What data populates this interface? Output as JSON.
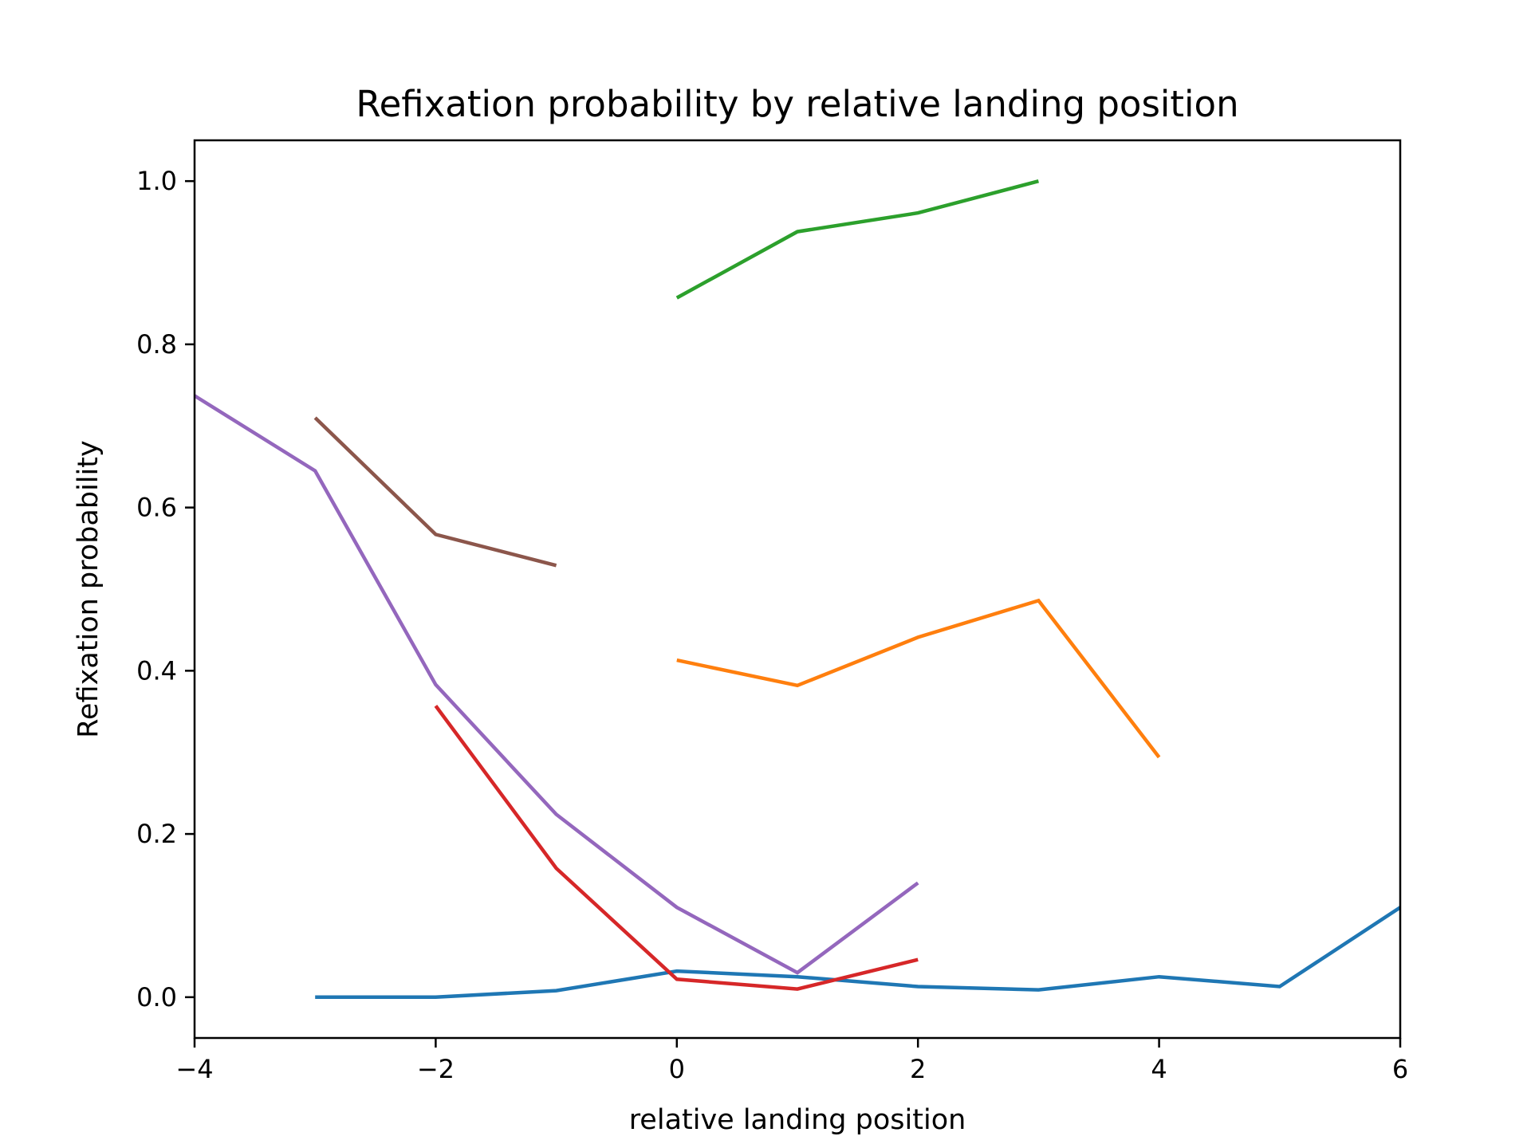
{
  "chart_data": {
    "type": "line",
    "title": "Refixation probability by relative landing position",
    "xlabel": "relative landing position",
    "ylabel": "Refixation probability",
    "xlim": [
      -4,
      6
    ],
    "ylim": [
      -0.05,
      1.05
    ],
    "xticks": [
      -4,
      -2,
      0,
      2,
      4,
      6
    ],
    "xtick_labels": [
      "−4",
      "−2",
      "0",
      "2",
      "4",
      "6"
    ],
    "yticks": [
      0.0,
      0.2,
      0.4,
      0.6,
      0.8,
      1.0
    ],
    "ytick_labels": [
      "0.0",
      "0.2",
      "0.4",
      "0.6",
      "0.8",
      "1.0"
    ],
    "grid": false,
    "series": [
      {
        "color": "#1f77b4",
        "x": [
          -3,
          -2,
          -1,
          0,
          1,
          2,
          3,
          4,
          5,
          6
        ],
        "y": [
          0.0,
          0.0,
          0.008,
          0.032,
          0.025,
          0.013,
          0.009,
          0.025,
          0.013,
          0.11
        ]
      },
      {
        "color": "#ff7f0e",
        "x": [
          0,
          1,
          2,
          3,
          4
        ],
        "y": [
          0.413,
          0.382,
          0.441,
          0.486,
          0.294
        ]
      },
      {
        "color": "#2ca02c",
        "x": [
          0,
          1,
          2,
          3
        ],
        "y": [
          0.857,
          0.938,
          0.961,
          1.0
        ]
      },
      {
        "color": "#d62728",
        "x": [
          -2,
          -1,
          0,
          1,
          2
        ],
        "y": [
          0.357,
          0.158,
          0.022,
          0.01,
          0.046
        ]
      },
      {
        "color": "#9467bd",
        "x": [
          -4,
          -3,
          -2,
          -1,
          0,
          1,
          2
        ],
        "y": [
          0.737,
          0.645,
          0.383,
          0.224,
          0.11,
          0.03,
          0.14
        ]
      },
      {
        "color": "#8c564b",
        "x": [
          -3,
          -2,
          -1
        ],
        "y": [
          0.71,
          0.567,
          0.529
        ]
      }
    ]
  }
}
